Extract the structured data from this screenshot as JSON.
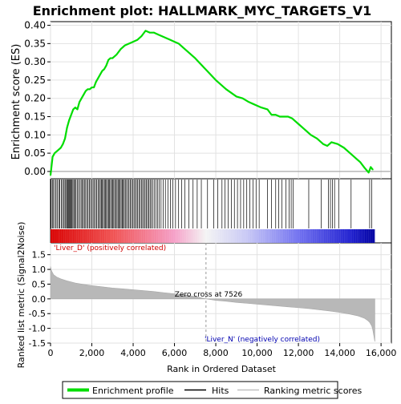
{
  "chart_data": {
    "type": "line",
    "title": "Enrichment plot: HALLMARK_MYC_TARGETS_V1",
    "xlabel": "Rank in Ordered Dataset",
    "ylabel_top": "Enrichment score (ES)",
    "ylabel_bottom": "Ranked list metric (Signal2Noise)",
    "xlim": [
      0,
      16500
    ],
    "x_ticks": [
      0,
      2000,
      4000,
      6000,
      8000,
      10000,
      12000,
      14000,
      16000
    ],
    "x_tick_labels": [
      "0",
      "2,000",
      "4,000",
      "6,000",
      "8,000",
      "10,000",
      "12,000",
      "14,000",
      "16,000"
    ],
    "es_ylim": [
      -0.02,
      0.41
    ],
    "es_ticks": [
      0.0,
      0.05,
      0.1,
      0.15,
      0.2,
      0.25,
      0.3,
      0.35,
      0.4
    ],
    "es_tick_labels": [
      "0.00",
      "0.05",
      "0.10",
      "0.15",
      "0.20",
      "0.25",
      "0.30",
      "0.35",
      "0.40"
    ],
    "metric_ylim": [
      -1.5,
      1.9
    ],
    "metric_ticks": [
      -1.5,
      -1.0,
      -0.5,
      0.0,
      0.5,
      1.0,
      1.5
    ],
    "metric_tick_labels": [
      "-1.5",
      "-1.0",
      "-0.5",
      "0.0",
      "0.5",
      "1.0",
      "1.5"
    ],
    "grid": true,
    "zero_cross_rank": 7526,
    "zero_cross_label": "Zero cross at 7526",
    "pos_label": "'Liver_D' (positively correlated)",
    "neg_label": "'Liver_N' (negatively correlated)",
    "n_genes": 15700,
    "series": [
      {
        "name": "Enrichment profile",
        "color": "#00dd00",
        "x": [
          0,
          100,
          200,
          300,
          400,
          500,
          600,
          700,
          800,
          900,
          1000,
          1100,
          1200,
          1300,
          1400,
          1500,
          1600,
          1700,
          1800,
          1900,
          2000,
          2100,
          2200,
          2300,
          2400,
          2500,
          2600,
          2700,
          2800,
          2900,
          3000,
          3200,
          3400,
          3600,
          3800,
          4000,
          4200,
          4400,
          4600,
          4800,
          5000,
          5200,
          5400,
          5600,
          5800,
          6000,
          6200,
          6500,
          7000,
          7500,
          8000,
          8500,
          9000,
          9300,
          9600,
          9800,
          10000,
          10200,
          10500,
          10700,
          10900,
          11100,
          11300,
          11500,
          11700,
          12000,
          12300,
          12600,
          12900,
          13200,
          13400,
          13600,
          13900,
          14200,
          14500,
          14800,
          15000,
          15200,
          15400,
          15500,
          15600
        ],
        "y": [
          -0.01,
          0.04,
          0.05,
          0.055,
          0.06,
          0.065,
          0.075,
          0.09,
          0.12,
          0.14,
          0.155,
          0.17,
          0.175,
          0.17,
          0.19,
          0.2,
          0.21,
          0.22,
          0.225,
          0.225,
          0.23,
          0.23,
          0.245,
          0.255,
          0.265,
          0.275,
          0.28,
          0.29,
          0.305,
          0.31,
          0.31,
          0.32,
          0.335,
          0.345,
          0.35,
          0.355,
          0.36,
          0.37,
          0.385,
          0.38,
          0.38,
          0.375,
          0.37,
          0.365,
          0.36,
          0.355,
          0.35,
          0.335,
          0.31,
          0.28,
          0.25,
          0.225,
          0.205,
          0.2,
          0.19,
          0.185,
          0.18,
          0.175,
          0.17,
          0.155,
          0.155,
          0.15,
          0.15,
          0.15,
          0.145,
          0.13,
          0.115,
          0.1,
          0.09,
          0.075,
          0.07,
          0.08,
          0.075,
          0.065,
          0.05,
          0.035,
          0.025,
          0.01,
          -0.003,
          0.012,
          0.005
        ]
      }
    ],
    "hits": [
      30,
      90,
      140,
      210,
      270,
      330,
      400,
      450,
      520,
      580,
      640,
      700,
      740,
      790,
      840,
      870,
      910,
      950,
      990,
      1030,
      1080,
      1130,
      1170,
      1230,
      1290,
      1350,
      1420,
      1480,
      1530,
      1590,
      1640,
      1700,
      1760,
      1820,
      1880,
      1940,
      2000,
      2060,
      2120,
      2180,
      2240,
      2300,
      2360,
      2410,
      2460,
      2510,
      2560,
      2610,
      2660,
      2710,
      2760,
      2810,
      2860,
      2910,
      2960,
      3010,
      3060,
      3110,
      3160,
      3220,
      3270,
      3320,
      3370,
      3420,
      3470,
      3520,
      3570,
      3620,
      3680,
      3740,
      3800,
      3860,
      3920,
      3980,
      4040,
      4100,
      4160,
      4220,
      4280,
      4340,
      4400,
      4460,
      4520,
      4580,
      4640,
      4700,
      4760,
      4820,
      4880,
      4950,
      5020,
      5100,
      5180,
      5260,
      5350,
      5450,
      5560,
      5680,
      5800,
      5920,
      6050,
      6200,
      6350,
      6500,
      6700,
      6900,
      7100,
      7300,
      7600,
      7900,
      8100,
      8300,
      8450,
      8600,
      8750,
      8900,
      9050,
      9200,
      9350,
      9500,
      9650,
      9800,
      9950,
      10100,
      10500,
      10700,
      10900,
      11050,
      11200,
      11400,
      11550,
      11650,
      11750,
      12500,
      13100,
      13450,
      13550,
      13650,
      13750,
      13950,
      14550,
      15450,
      15550
    ],
    "metric_curve": {
      "x": [
        0,
        50,
        150,
        300,
        500,
        800,
        1200,
        1600,
        2000,
        2500,
        3000,
        3500,
        4000,
        4500,
        5000,
        5500,
        6000,
        6500,
        7000,
        7526,
        8000,
        8500,
        9000,
        9500,
        10000,
        10500,
        11000,
        11500,
        12000,
        12500,
        13000,
        13500,
        14000,
        14500,
        14900,
        15200,
        15350,
        15450,
        15550,
        15600,
        15650,
        15700
      ],
      "y": [
        1.1,
        0.95,
        0.82,
        0.74,
        0.68,
        0.61,
        0.54,
        0.49,
        0.45,
        0.41,
        0.37,
        0.34,
        0.31,
        0.28,
        0.25,
        0.21,
        0.17,
        0.13,
        0.08,
        0.0,
        -0.05,
        -0.08,
        -0.12,
        -0.15,
        -0.18,
        -0.21,
        -0.24,
        -0.27,
        -0.3,
        -0.33,
        -0.37,
        -0.41,
        -0.46,
        -0.52,
        -0.58,
        -0.66,
        -0.73,
        -0.8,
        -0.92,
        -1.05,
        -1.25,
        -1.45
      ]
    },
    "legend": {
      "placement": "bottom",
      "items": [
        {
          "label": "Enrichment profile",
          "color": "#00dd00",
          "style": "thick-line"
        },
        {
          "label": "Hits",
          "color": "#000000",
          "style": "line"
        },
        {
          "label": "Ranking metric scores",
          "color": "#c0c0c0",
          "style": "line"
        }
      ]
    },
    "colorbar_stops": [
      {
        "rank": 0,
        "color": "#d90000"
      },
      {
        "rank": 3000,
        "color": "#f05050"
      },
      {
        "rank": 6000,
        "color": "#f5a0c8"
      },
      {
        "rank": 7526,
        "color": "#f4f4f4"
      },
      {
        "rank": 9500,
        "color": "#c8c8f5"
      },
      {
        "rank": 12000,
        "color": "#7070f0"
      },
      {
        "rank": 14500,
        "color": "#2020d0"
      },
      {
        "rank": 15700,
        "color": "#0000a0"
      }
    ]
  }
}
